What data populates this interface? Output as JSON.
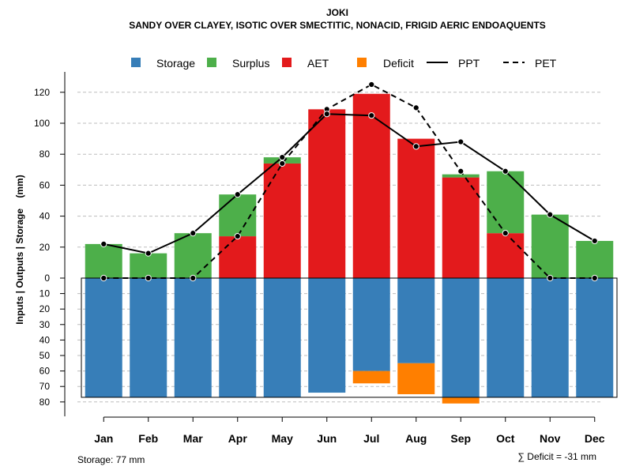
{
  "chart_data": {
    "type": "bar",
    "title": "JOKI",
    "subtitle": "SANDY OVER CLAYEY, ISOTIC OVER SMECTITIC, NONACID, FRIGID AERIC ENDOAQUENTS",
    "ylabel": "Inputs | Outputs | Storage    (mm)",
    "categories": [
      "Jan",
      "Feb",
      "Mar",
      "Apr",
      "May",
      "Jun",
      "Jul",
      "Aug",
      "Sep",
      "Oct",
      "Nov",
      "Dec"
    ],
    "ylim": [
      -83,
      132
    ],
    "yticks_positive": [
      0,
      20,
      40,
      60,
      80,
      100,
      120
    ],
    "yticks_negative": [
      10,
      20,
      30,
      40,
      50,
      60,
      70,
      80
    ],
    "storage_capacity": 77,
    "series": [
      {
        "name": "AET",
        "color": "#e31a1c",
        "values": [
          0,
          0,
          0,
          27,
          74,
          109,
          119,
          90,
          65,
          29,
          0,
          0
        ]
      },
      {
        "name": "Surplus",
        "color": "#4daf4a",
        "values": [
          22,
          16,
          29,
          27,
          4,
          0,
          0,
          0,
          2,
          40,
          41,
          24
        ]
      },
      {
        "name": "Storage",
        "color": "#377eb8",
        "values": [
          77,
          77,
          77,
          77,
          77,
          74,
          60,
          55,
          77,
          77,
          77,
          77
        ]
      },
      {
        "name": "Deficit",
        "color": "#ff7f00",
        "values": [
          0,
          0,
          0,
          0,
          0,
          0,
          8,
          20,
          4,
          0,
          0,
          0
        ]
      },
      {
        "name": "PPT",
        "style": "solid",
        "values": [
          22,
          16,
          29,
          54,
          78,
          106,
          105,
          85,
          88,
          69,
          41,
          24
        ]
      },
      {
        "name": "PET",
        "style": "dashed",
        "values": [
          0,
          0,
          0,
          27,
          74,
          109,
          125,
          110,
          69,
          29,
          0,
          0
        ]
      }
    ],
    "legend": [
      {
        "label": "Storage",
        "kind": "box",
        "color": "#377eb8"
      },
      {
        "label": "Surplus",
        "kind": "box",
        "color": "#4daf4a"
      },
      {
        "label": "AET",
        "kind": "box",
        "color": "#e31a1c"
      },
      {
        "label": "Deficit",
        "kind": "box",
        "color": "#ff7f00"
      },
      {
        "label": "PPT",
        "kind": "solid-line",
        "color": "#000000"
      },
      {
        "label": "PET",
        "kind": "dashed-line",
        "color": "#000000"
      }
    ],
    "legend_position": "top",
    "grid": "dashed-horizontal",
    "footer_left": "Storage: 77 mm",
    "footer_right": "∑ Deficit = -31 mm"
  }
}
